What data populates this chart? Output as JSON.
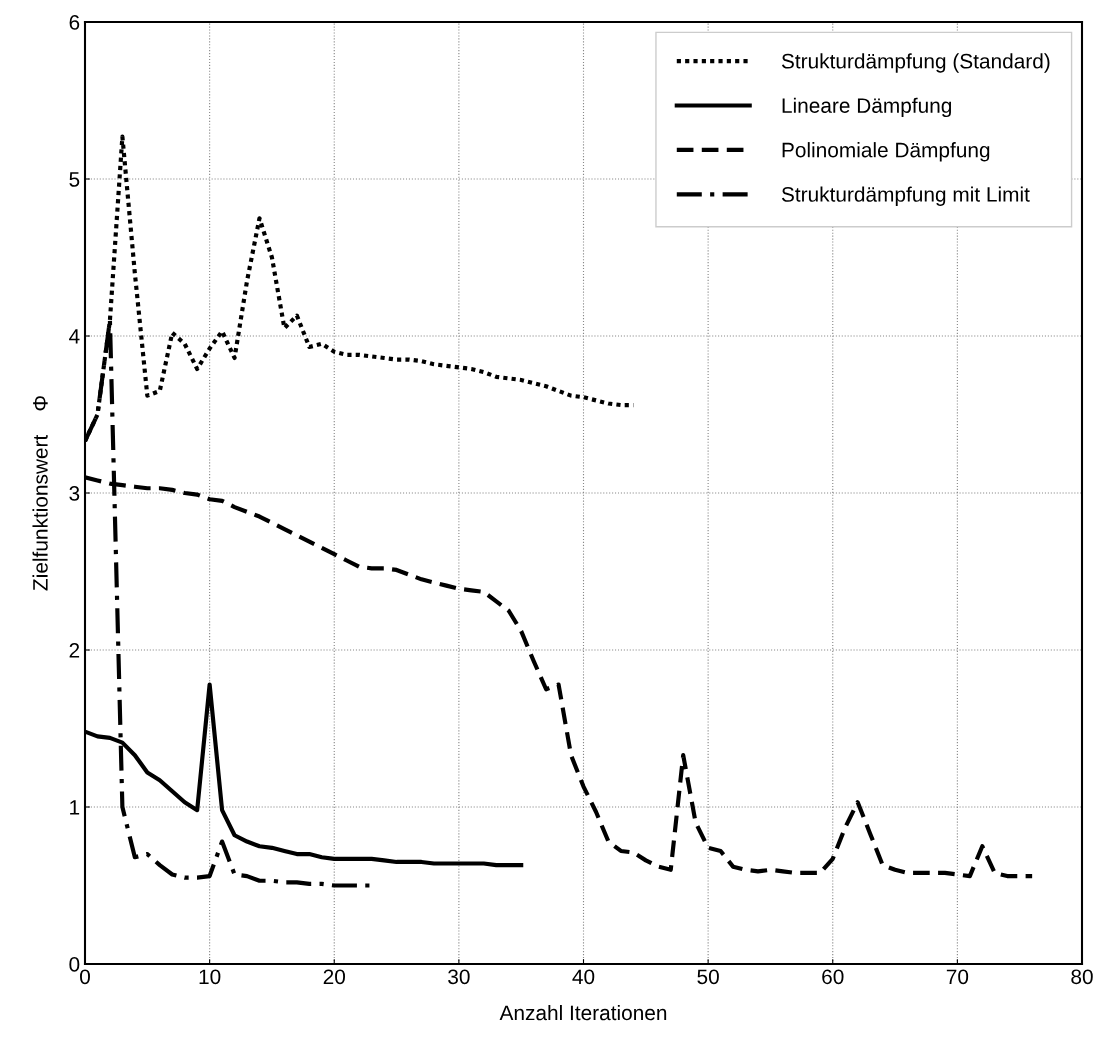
{
  "chart_data": {
    "type": "line",
    "xlabel": "Anzahl Iterationen",
    "ylabel": "Zielfunktionswert    Φ",
    "xlim": [
      0,
      80
    ],
    "xticks": [
      0,
      10,
      20,
      30,
      40,
      50,
      60,
      70,
      80
    ],
    "ylim": [
      0,
      6
    ],
    "yticks": [
      0,
      1,
      2,
      3,
      4,
      5,
      6
    ],
    "grid": true,
    "legend": "top right",
    "marker": "none",
    "series": [
      {
        "name": "Strukturdämpfung (Standard)",
        "color": "#000000",
        "line_style": "dotted",
        "x": [
          0,
          1,
          2,
          3,
          4,
          5,
          6,
          7,
          8,
          9,
          10,
          11,
          12,
          13,
          14,
          15,
          16,
          17,
          18,
          19,
          20,
          21,
          22,
          23,
          24,
          25,
          26,
          27,
          28,
          29,
          30,
          31,
          32,
          33,
          34,
          35,
          36,
          37,
          38,
          39,
          40,
          41,
          42,
          43,
          44
        ],
        "values": [
          3.33,
          3.5,
          4.1,
          5.27,
          4.4,
          3.62,
          3.65,
          4.02,
          3.95,
          3.79,
          3.92,
          4.03,
          3.86,
          4.35,
          4.75,
          4.5,
          4.05,
          4.13,
          3.93,
          3.95,
          3.9,
          3.88,
          3.88,
          3.87,
          3.86,
          3.85,
          3.85,
          3.84,
          3.82,
          3.81,
          3.8,
          3.79,
          3.77,
          3.74,
          3.73,
          3.72,
          3.7,
          3.68,
          3.65,
          3.62,
          3.61,
          3.59,
          3.57,
          3.56,
          3.56
        ]
      },
      {
        "name": "Lineare Dämpfung",
        "color": "#000000",
        "line_style": "solid",
        "x": [
          0,
          1,
          2,
          3,
          4,
          5,
          6,
          7,
          8,
          9,
          10,
          11,
          12,
          13,
          14,
          15,
          16,
          17,
          18,
          19,
          20,
          21,
          22,
          23,
          24,
          25,
          26,
          27,
          28,
          29,
          30,
          31,
          32,
          33,
          34,
          35
        ],
        "values": [
          1.48,
          1.45,
          1.44,
          1.41,
          1.33,
          1.22,
          1.17,
          1.1,
          1.03,
          0.98,
          1.78,
          0.98,
          0.82,
          0.78,
          0.75,
          0.74,
          0.72,
          0.7,
          0.7,
          0.68,
          0.67,
          0.67,
          0.67,
          0.67,
          0.66,
          0.65,
          0.65,
          0.65,
          0.64,
          0.64,
          0.64,
          0.64,
          0.64,
          0.63,
          0.63,
          0.63
        ]
      },
      {
        "name": "Polinomiale Dämpfung",
        "color": "#000000",
        "line_style": "dashed",
        "x": [
          0,
          1,
          2,
          3,
          4,
          5,
          6,
          7,
          8,
          9,
          10,
          11,
          12,
          13,
          14,
          15,
          16,
          17,
          18,
          19,
          20,
          21,
          22,
          23,
          24,
          25,
          26,
          27,
          28,
          29,
          30,
          31,
          32,
          33,
          34,
          35,
          36,
          37,
          38,
          39,
          40,
          41,
          42,
          43,
          44,
          45,
          46,
          47,
          48,
          49,
          50,
          51,
          52,
          53,
          54,
          55,
          56,
          57,
          58,
          59,
          60,
          61,
          62,
          63,
          64,
          65,
          66,
          67,
          68,
          69,
          70,
          71,
          72,
          73,
          74,
          75,
          76
        ],
        "values": [
          3.1,
          3.08,
          3.06,
          3.05,
          3.04,
          3.03,
          3.03,
          3.02,
          3.0,
          2.99,
          2.96,
          2.95,
          2.91,
          2.88,
          2.85,
          2.81,
          2.77,
          2.73,
          2.69,
          2.65,
          2.61,
          2.57,
          2.53,
          2.52,
          2.52,
          2.51,
          2.48,
          2.45,
          2.43,
          2.41,
          2.39,
          2.38,
          2.37,
          2.31,
          2.25,
          2.12,
          1.93,
          1.75,
          1.78,
          1.33,
          1.13,
          0.97,
          0.78,
          0.72,
          0.71,
          0.66,
          0.62,
          0.6,
          1.33,
          0.9,
          0.74,
          0.72,
          0.62,
          0.6,
          0.59,
          0.6,
          0.59,
          0.58,
          0.58,
          0.58,
          0.67,
          0.87,
          1.03,
          0.83,
          0.63,
          0.6,
          0.58,
          0.58,
          0.58,
          0.58,
          0.57,
          0.56,
          0.75,
          0.58,
          0.56,
          0.56,
          0.56
        ]
      },
      {
        "name": "Strukturdämpfung mit Limit",
        "color": "#000000",
        "line_style": "dashdot",
        "x": [
          0,
          1,
          2,
          3,
          4,
          5,
          6,
          7,
          8,
          9,
          10,
          11,
          12,
          13,
          14,
          15,
          16,
          17,
          18,
          19,
          20,
          21,
          22,
          23
        ],
        "values": [
          3.33,
          3.5,
          4.1,
          1.0,
          0.68,
          0.7,
          0.63,
          0.57,
          0.55,
          0.55,
          0.56,
          0.78,
          0.57,
          0.56,
          0.53,
          0.53,
          0.52,
          0.52,
          0.51,
          0.51,
          0.5,
          0.5,
          0.5,
          0.5
        ]
      }
    ]
  }
}
